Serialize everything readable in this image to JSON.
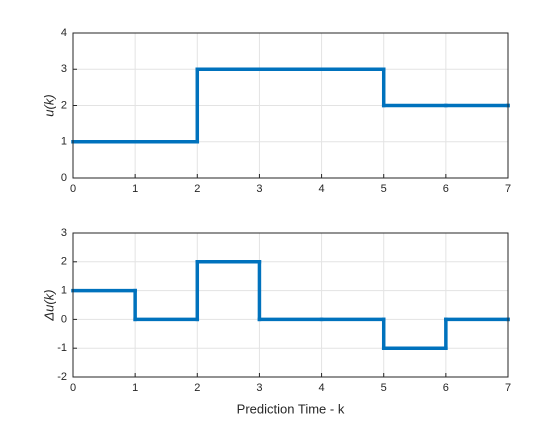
{
  "chart_data": [
    {
      "type": "stairs",
      "ylabel": "u(k)",
      "x": [
        0,
        1,
        2,
        3,
        4,
        5,
        6,
        7
      ],
      "values": [
        1,
        1,
        3,
        3,
        3,
        2,
        2,
        2
      ],
      "color": "#0072bd",
      "xlim": [
        0,
        7
      ],
      "ylim": [
        0,
        4
      ],
      "xticks": [
        0,
        1,
        2,
        3,
        4,
        5,
        6,
        7
      ],
      "yticks": [
        0,
        1,
        2,
        3,
        4
      ],
      "grid": true
    },
    {
      "type": "stairs",
      "ylabel": "Δu(k)",
      "xlabel": "Prediction Time - k",
      "x": [
        0,
        1,
        2,
        3,
        4,
        5,
        6,
        7
      ],
      "values": [
        1,
        0,
        2,
        0,
        0,
        -1,
        0,
        0
      ],
      "color": "#0072bd",
      "xlim": [
        0,
        7
      ],
      "ylim": [
        -2,
        3
      ],
      "xticks": [
        0,
        1,
        2,
        3,
        4,
        5,
        6,
        7
      ],
      "yticks": [
        -2,
        -1,
        0,
        1,
        2,
        3
      ],
      "grid": true
    }
  ]
}
